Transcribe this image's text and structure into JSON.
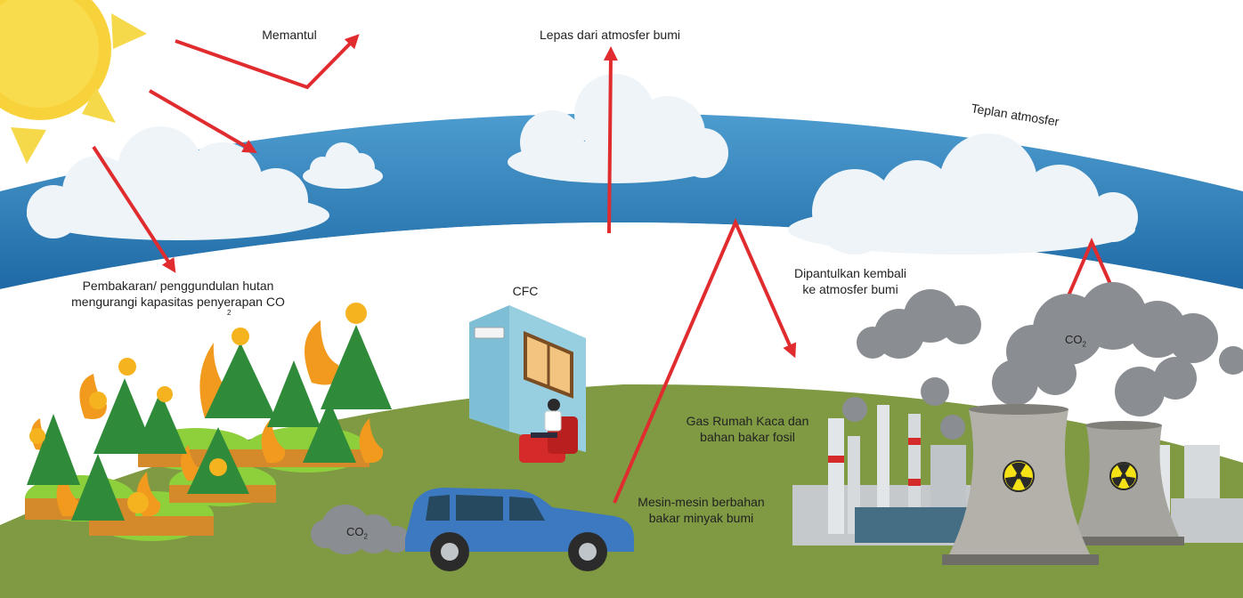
{
  "labels": {
    "reflected": "Memantul",
    "escape": "Lepas dari atmosfer bumi",
    "blanket": "Teplan atmosfer",
    "burning_line1": "Pembakaran/ penggundulan hutan",
    "burning_line2": "mengurangi kapasitas penyerapan CO",
    "burning_sub": "2",
    "cfc": "CFC",
    "reflected_back_line1": "Dipantulkan kembali",
    "reflected_back_line2": "ke atmosfer bumi",
    "ghg_line1": "Gas Rumah Kaca dan",
    "ghg_line2": "bahan bakar fosil",
    "engines_line1": "Mesin-mesin berbahan",
    "engines_line2": "bakar minyak bumi",
    "co2_factory": "CO",
    "co2_factory_sub": "2",
    "co2_car": "CO",
    "co2_car_sub": "2"
  },
  "colors": {
    "atmosphere": "#2f7fb8",
    "atmosphere_light": "#4a98cc",
    "ground": "#7f9a43",
    "sun": "#f7d23a",
    "sun_ray": "#f6d94a",
    "arrow": "#e02b2f",
    "cloud": "#eef4f8",
    "smoke": "#8a8d92",
    "car": "#3c79c0",
    "wall": "#98cfe0",
    "chair": "#d42a2a",
    "tree": "#2f8a3a",
    "flame": "#f29a1e",
    "tower": "#a5a49f",
    "hazard": "#f5e216"
  },
  "icons": [
    "sun-icon",
    "tree-icon",
    "flame-icon",
    "cloud-icon",
    "smoke-icon",
    "car-icon",
    "air-conditioner-icon",
    "armchair-icon",
    "cooling-tower-icon",
    "radiation-icon",
    "factory-icon"
  ]
}
